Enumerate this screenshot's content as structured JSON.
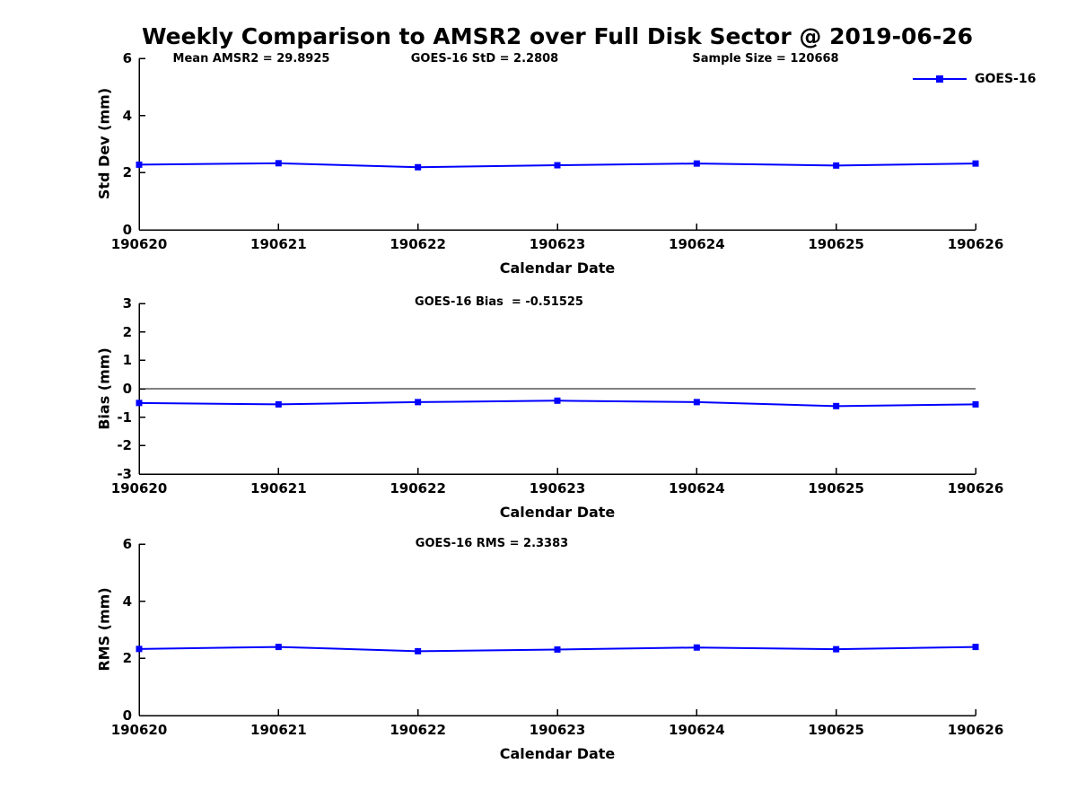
{
  "figure_title": "Weekly Comparison to AMSR2 over Full Disk Sector @ 2019-06-26",
  "legend": {
    "label": "GOES-16",
    "color": "#0000ff"
  },
  "colors": {
    "line": "#0000ff",
    "axis": "#000000",
    "text": "#000000",
    "background": "#ffffff"
  },
  "chart_data": [
    {
      "type": "line",
      "name": "std-dev-subplot",
      "annotations": [
        "Mean AMSR2 = 29.8925",
        "GOES-16 StD = 2.2808",
        "Sample Size = 120668"
      ],
      "categories": [
        "190620",
        "190621",
        "190622",
        "190623",
        "190624",
        "190625",
        "190626"
      ],
      "series": [
        {
          "name": "GOES-16",
          "color": "#0000ff",
          "marker": "square",
          "values": [
            2.28,
            2.33,
            2.19,
            2.26,
            2.32,
            2.25,
            2.32
          ]
        }
      ],
      "xlabel": "Calendar Date",
      "ylabel": "Std Dev (mm)",
      "ylim": [
        0,
        6
      ],
      "yticks": [
        0,
        2,
        4,
        6
      ],
      "grid": false,
      "zero_line": false,
      "legend_position": "top-right-inside"
    },
    {
      "type": "line",
      "name": "bias-subplot",
      "title": "GOES-16 Bias  = -0.51525",
      "categories": [
        "190620",
        "190621",
        "190622",
        "190623",
        "190624",
        "190625",
        "190626"
      ],
      "series": [
        {
          "name": "GOES-16",
          "color": "#0000ff",
          "marker": "square",
          "values": [
            -0.5,
            -0.55,
            -0.47,
            -0.42,
            -0.47,
            -0.61,
            -0.55
          ]
        }
      ],
      "xlabel": "Calendar Date",
      "ylabel": "Bias (mm)",
      "ylim": [
        -3,
        3
      ],
      "yticks": [
        -3,
        -2,
        -1,
        0,
        1,
        2,
        3
      ],
      "grid": false,
      "zero_line": true,
      "legend_position": "none"
    },
    {
      "type": "line",
      "name": "rms-subplot",
      "title": "GOES-16 RMS = 2.3383",
      "categories": [
        "190620",
        "190621",
        "190622",
        "190623",
        "190624",
        "190625",
        "190626"
      ],
      "series": [
        {
          "name": "GOES-16",
          "color": "#0000ff",
          "marker": "square",
          "values": [
            2.33,
            2.4,
            2.25,
            2.31,
            2.38,
            2.32,
            2.4
          ]
        }
      ],
      "xlabel": "Calendar Date",
      "ylabel": "RMS (mm)",
      "ylim": [
        0,
        6
      ],
      "yticks": [
        0,
        2,
        4,
        6
      ],
      "grid": false,
      "zero_line": false,
      "legend_position": "none"
    }
  ]
}
